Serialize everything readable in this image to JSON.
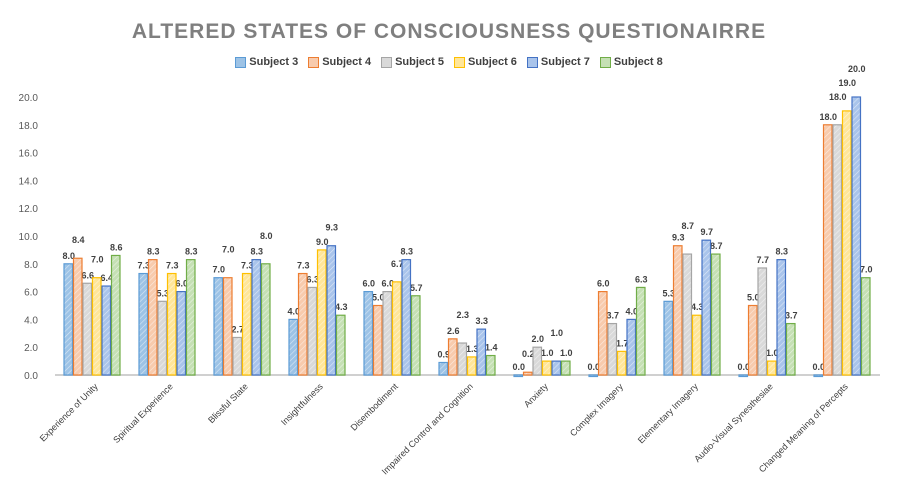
{
  "chart_data": {
    "type": "bar",
    "title": "ALTERED STATES OF CONSCIOUSNESS QUESTIONAIRRE",
    "categories": [
      "Experience of Unity",
      "Spiritual Experience",
      "Blissful State",
      "Insightfulness",
      "Disembodiment",
      "Impaired Control and Cognition",
      "Anxiety",
      "Complex Imagery",
      "Elementary Imagery",
      "Audio-Visual Synesthesiae",
      "Changed Meaning of Percepts"
    ],
    "series": [
      {
        "name": "Subject 3",
        "color": "#9dc3e6",
        "edge": "#5b9bd5",
        "values": [
          8.0,
          7.3,
          7.0,
          4.0,
          6.0,
          0.9,
          0.0,
          0.0,
          5.3,
          0.0,
          0.0
        ]
      },
      {
        "name": "Subject 4",
        "color": "#f8cbad",
        "edge": "#ed7d31",
        "values": [
          8.4,
          8.3,
          7.0,
          7.3,
          5.0,
          2.6,
          0.2,
          6.0,
          9.3,
          5.0,
          18.0
        ]
      },
      {
        "name": "Subject 5",
        "color": "#d9d9d9",
        "edge": "#a5a5a5",
        "values": [
          6.6,
          5.3,
          2.7,
          6.3,
          6.0,
          2.3,
          2.0,
          3.7,
          8.7,
          7.7,
          18.0
        ]
      },
      {
        "name": "Subject 6",
        "color": "#ffe699",
        "edge": "#ffc000",
        "values": [
          7.0,
          7.3,
          7.3,
          9.0,
          6.7,
          1.3,
          1.0,
          1.7,
          4.3,
          1.0,
          19.0
        ]
      },
      {
        "name": "Subject 7",
        "color": "#a9c4eb",
        "edge": "#4472c4",
        "values": [
          6.4,
          6.0,
          8.3,
          9.3,
          8.3,
          3.3,
          1.0,
          4.0,
          9.7,
          8.3,
          20.0
        ]
      },
      {
        "name": "Subject 8",
        "color": "#c5e0b4",
        "edge": "#70ad47",
        "values": [
          8.6,
          8.3,
          8.0,
          4.3,
          5.7,
          1.4,
          1.0,
          6.3,
          8.7,
          3.7,
          7.0
        ]
      }
    ],
    "ylim": [
      0,
      20
    ],
    "yticks": [
      "0.0",
      "2.0",
      "4.0",
      "6.0",
      "8.0",
      "10.0",
      "12.0",
      "14.0",
      "16.0",
      "18.0",
      "20.0"
    ],
    "grid": false,
    "legend": "top"
  }
}
